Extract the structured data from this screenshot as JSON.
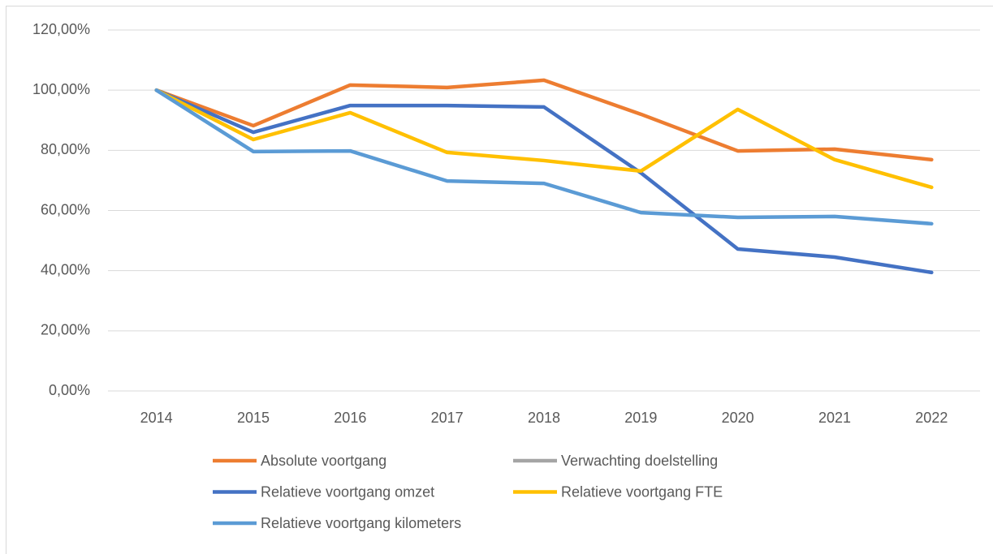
{
  "chart_data": {
    "type": "line",
    "categories": [
      "2014",
      "2015",
      "2016",
      "2017",
      "2018",
      "2019",
      "2020",
      "2021",
      "2022"
    ],
    "series": [
      {
        "name": "Absolute voortgang",
        "color": "#ED7D31",
        "values": [
          100,
          88.2,
          101.7,
          100.9,
          103.3,
          92.0,
          79.8,
          80.4,
          76.9
        ]
      },
      {
        "name": "Verwachting doelstelling",
        "color": "#A5A5A5",
        "values": [
          null,
          null,
          null,
          null,
          null,
          null,
          null,
          null,
          null
        ]
      },
      {
        "name": "Relatieve voortgang omzet",
        "color": "#4472C4",
        "values": [
          100,
          86.0,
          94.9,
          94.9,
          94.4,
          72.5,
          47.2,
          44.5,
          39.4
        ]
      },
      {
        "name": "Relatieve voortgang FTE",
        "color": "#FFC000",
        "values": [
          100,
          83.6,
          92.5,
          79.3,
          76.6,
          73.1,
          93.6,
          76.9,
          67.7
        ]
      },
      {
        "name": "Relatieve voortgang kilometers",
        "color": "#5B9BD5",
        "values": [
          100,
          79.6,
          79.8,
          69.8,
          69.0,
          59.3,
          57.7,
          58.0,
          55.6
        ]
      }
    ],
    "ylim": [
      0,
      120
    ],
    "yticks": [
      {
        "value": 0,
        "label": "0,00%"
      },
      {
        "value": 20,
        "label": "20,00%"
      },
      {
        "value": 40,
        "label": "40,00%"
      },
      {
        "value": 60,
        "label": "60,00%"
      },
      {
        "value": 80,
        "label": "80,00%"
      },
      {
        "value": 100,
        "label": "100,00%"
      },
      {
        "value": 120,
        "label": "120,00%"
      }
    ],
    "grid": true,
    "legend": "bottom"
  }
}
